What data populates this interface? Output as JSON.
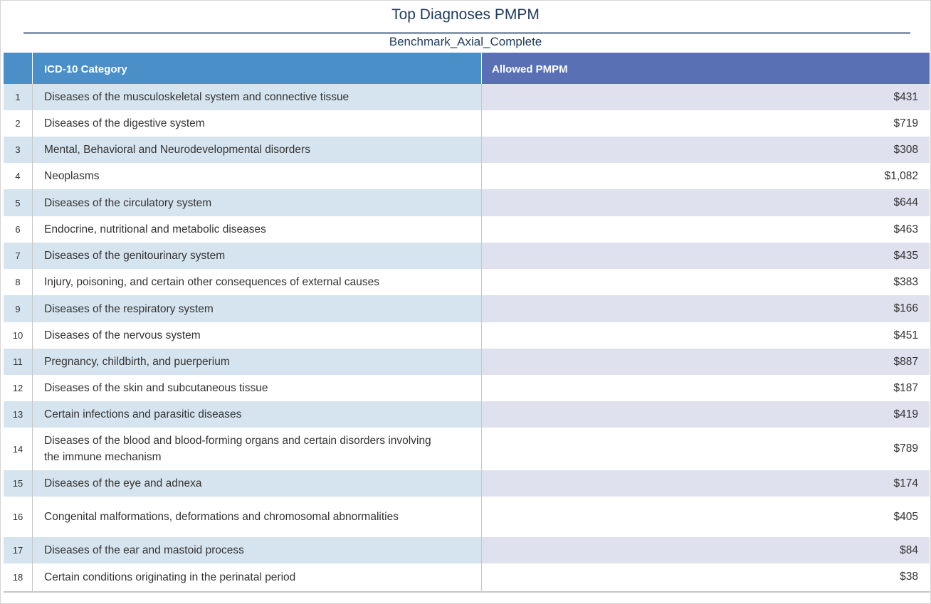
{
  "chart_data": {
    "type": "table",
    "title": "Top Diagnoses PMPM",
    "subtitle": "Benchmark_Axial_Complete",
    "columns": [
      "ICD-10 Category",
      "Allowed PMPM"
    ],
    "rows": [
      {
        "rank": "1",
        "category": "Diseases of the musculoskeletal system and connective tissue",
        "value": "$431"
      },
      {
        "rank": "2",
        "category": "Diseases of the digestive system",
        "value": "$719"
      },
      {
        "rank": "3",
        "category": "Mental, Behavioral and Neurodevelopmental disorders",
        "value": "$308"
      },
      {
        "rank": "4",
        "category": "Neoplasms",
        "value": "$1,082"
      },
      {
        "rank": "5",
        "category": "Diseases of the circulatory system",
        "value": "$644"
      },
      {
        "rank": "6",
        "category": "Endocrine, nutritional and metabolic diseases",
        "value": "$463"
      },
      {
        "rank": "7",
        "category": "Diseases of the genitourinary system",
        "value": "$435"
      },
      {
        "rank": "8",
        "category": "Injury, poisoning, and certain other consequences of external causes",
        "value": "$383"
      },
      {
        "rank": "9",
        "category": "Diseases of the respiratory system",
        "value": "$166"
      },
      {
        "rank": "10",
        "category": "Diseases of the nervous system",
        "value": "$451"
      },
      {
        "rank": "11",
        "category": "Pregnancy, childbirth, and puerperium",
        "value": "$887"
      },
      {
        "rank": "12",
        "category": "Diseases of the skin and subcutaneous tissue",
        "value": "$187"
      },
      {
        "rank": "13",
        "category": "Certain infections and parasitic diseases",
        "value": "$419"
      },
      {
        "rank": "14",
        "category": "Diseases of the blood and blood-forming organs and certain disorders involving the immune mechanism",
        "value": "$789"
      },
      {
        "rank": "15",
        "category": "Diseases of the eye and adnexa",
        "value": "$174"
      },
      {
        "rank": "16",
        "category": "Congenital malformations, deformations and chromosomal abnormalities",
        "value": "$405"
      },
      {
        "rank": "17",
        "category": "Diseases of the ear and mastoid process",
        "value": "$84"
      },
      {
        "rank": "18",
        "category": "Certain conditions originating in the perinatal period",
        "value": "$38"
      }
    ]
  },
  "colors": {
    "title_text": "#1f3a5c",
    "header_category_bg": "#4a8fc8",
    "header_value_bg": "#5a70b4",
    "row_band_category": "#d6e4ef",
    "row_band_value": "#dfe1ef"
  }
}
